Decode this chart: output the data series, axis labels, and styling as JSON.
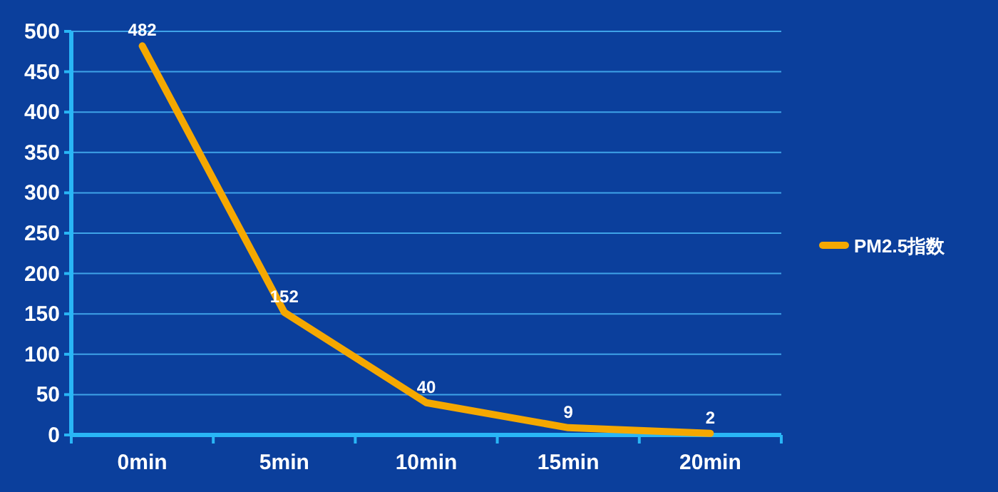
{
  "chart_data": {
    "type": "line",
    "categories": [
      "0min",
      "5min",
      "10min",
      "15min",
      "20min"
    ],
    "series": [
      {
        "name": "PM2.5指数",
        "color": "#f5a800",
        "values": [
          482,
          152,
          40,
          9,
          2
        ]
      }
    ],
    "ylim": [
      0,
      500
    ],
    "yticks": [
      0,
      50,
      100,
      150,
      200,
      250,
      300,
      350,
      400,
      450,
      500
    ],
    "grid": "y",
    "legend": "right",
    "data_labels": true,
    "marker": "none",
    "line_style": "solid"
  }
}
